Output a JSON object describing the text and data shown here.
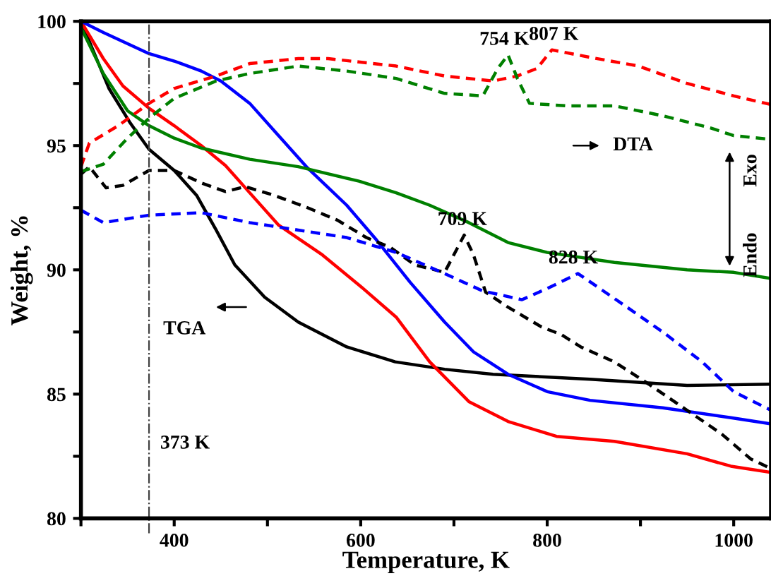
{
  "chart_data": {
    "type": "line",
    "xlabel": "Temperature, K",
    "ylabel": "Weight, %",
    "xlim": [
      300,
      1040
    ],
    "ylim": [
      80,
      100
    ],
    "xticks": [
      {
        "value": 300,
        "label": null
      },
      400,
      {
        "value": 500,
        "label": null
      },
      600,
      {
        "value": 700,
        "label": null
      },
      800,
      {
        "value": 900,
        "label": null
      },
      1000
    ],
    "yticks": [
      80,
      {
        "value": 82.5,
        "label": null
      },
      85,
      {
        "value": 87.5,
        "label": null
      },
      90,
      {
        "value": 92.5,
        "label": null
      },
      95,
      {
        "value": 97.5,
        "label": null
      },
      100
    ],
    "grid": false,
    "legend": false,
    "marker": "none",
    "ref_lines": [
      {
        "axis": "x",
        "value": 373,
        "label": "373 K",
        "color": "#404040",
        "line_style": "dashdot"
      }
    ],
    "annotations": [
      {
        "text": "754 K",
        "x": 754,
        "y": 98.65
      },
      {
        "text": "807 K",
        "x": 807,
        "y": 98.85
      },
      {
        "text": "709 K",
        "x": 709,
        "y": 91.4
      },
      {
        "text": "828 K",
        "x": 828,
        "y": 89.85
      },
      "TGA",
      "DTA",
      "Exo",
      "Endo"
    ],
    "series": [
      {
        "color": "#000000",
        "line_style": "solid",
        "x": [
          300,
          330,
          353,
          373,
          400,
          424,
          445,
          465,
          497,
          533,
          585,
          637,
          690,
          742,
          846,
          950,
          1040
        ],
        "values": [
          100,
          97.3,
          95.9,
          94.85,
          94.0,
          93.0,
          91.6,
          90.2,
          88.9,
          87.9,
          86.9,
          86.3,
          86.0,
          85.8,
          85.6,
          85.35,
          85.4
        ]
      },
      {
        "color": "#ff0000",
        "line_style": "solid",
        "x": [
          300,
          324,
          345,
          373,
          400,
          429,
          455,
          481,
          512,
          559,
          601,
          638,
          674,
          716,
          758,
          810,
          872,
          950,
          997,
          1040
        ],
        "values": [
          100,
          98.5,
          97.4,
          96.5,
          95.8,
          95.0,
          94.2,
          93.1,
          91.8,
          90.6,
          89.3,
          88.1,
          86.3,
          84.7,
          83.9,
          83.3,
          83.1,
          82.6,
          82.1,
          81.85
        ]
      },
      {
        "color": "#0000ff",
        "line_style": "solid",
        "x": [
          300,
          324,
          373,
          400,
          429,
          450,
          481,
          512,
          543,
          585,
          617,
          653,
          690,
          721,
          758,
          800,
          846,
          924,
          997,
          1040
        ],
        "values": [
          100,
          99.55,
          98.7,
          98.4,
          98.0,
          97.6,
          96.7,
          95.4,
          94.1,
          92.6,
          91.2,
          89.5,
          87.9,
          86.7,
          85.8,
          85.1,
          84.75,
          84.45,
          84.05,
          83.8
        ]
      },
      {
        "color": "#008000",
        "line_style": "solid",
        "x": [
          300,
          324,
          350,
          373,
          400,
          429,
          481,
          533,
          600,
          638,
          674,
          716,
          758,
          800,
          872,
          950,
          1000,
          1040
        ],
        "values": [
          99.75,
          97.9,
          96.4,
          95.8,
          95.3,
          94.9,
          94.45,
          94.15,
          93.55,
          93.1,
          92.6,
          91.9,
          91.1,
          90.7,
          90.3,
          90.0,
          89.9,
          89.65
        ]
      },
      {
        "color": "#000000",
        "line_style": "dashed",
        "x": [
          300,
          309,
          327,
          345,
          373,
          400,
          429,
          455,
          476,
          507,
          543,
          575,
          606,
          632,
          658,
          690,
          711,
          721,
          734,
          758,
          794,
          815,
          836,
          872,
          909,
          950,
          987,
          1018,
          1040
        ],
        "values": [
          93.85,
          94.15,
          93.3,
          93.4,
          94.0,
          94.0,
          93.5,
          93.15,
          93.35,
          93.0,
          92.5,
          92.0,
          91.3,
          90.9,
          90.2,
          89.9,
          91.4,
          90.6,
          89.1,
          88.5,
          87.7,
          87.4,
          86.9,
          86.3,
          85.4,
          84.35,
          83.4,
          82.4,
          82.0
        ]
      },
      {
        "color": "#0000ff",
        "line_style": "dashed",
        "x": [
          300,
          324,
          373,
          429,
          481,
          533,
          585,
          638,
          690,
          731,
          773,
          800,
          833,
          872,
          924,
          966,
          1000,
          1040
        ],
        "values": [
          92.4,
          91.9,
          92.2,
          92.3,
          91.9,
          91.6,
          91.3,
          90.7,
          89.85,
          89.15,
          88.8,
          89.25,
          89.85,
          88.85,
          87.5,
          86.3,
          85.1,
          84.35
        ]
      },
      {
        "color": "#ff0000",
        "line_style": "dashed",
        "x": [
          300,
          309,
          340,
          373,
          400,
          445,
          481,
          533,
          565,
          638,
          690,
          742,
          768,
          789,
          805,
          846,
          898,
          950,
          1000,
          1040
        ],
        "values": [
          94.15,
          95.1,
          95.8,
          96.7,
          97.3,
          97.8,
          98.3,
          98.5,
          98.5,
          98.2,
          97.8,
          97.6,
          97.8,
          98.1,
          98.85,
          98.55,
          98.2,
          97.5,
          97.0,
          96.65
        ]
      },
      {
        "color": "#008000",
        "line_style": "dashed",
        "x": [
          300,
          324,
          350,
          373,
          400,
          445,
          481,
          533,
          585,
          638,
          690,
          731,
          747,
          758,
          768,
          781,
          820,
          872,
          924,
          976,
          1000,
          1040
        ],
        "values": [
          93.95,
          94.25,
          95.3,
          96.1,
          96.9,
          97.6,
          97.9,
          98.2,
          98.0,
          97.7,
          97.1,
          97.0,
          98.1,
          98.65,
          97.7,
          96.7,
          96.6,
          96.6,
          96.2,
          95.7,
          95.4,
          95.25
        ]
      }
    ]
  }
}
